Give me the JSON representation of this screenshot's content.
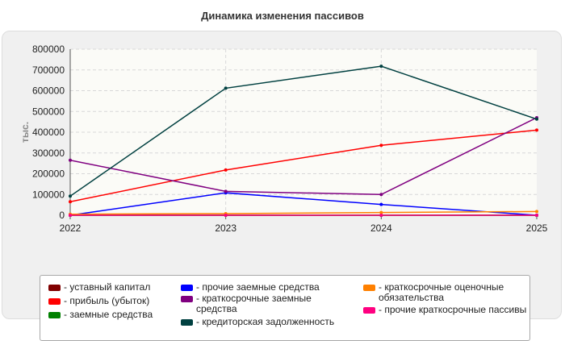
{
  "chart_data": {
    "type": "line",
    "title": "Динамика изменения пассивов",
    "ylabel": "тыс.",
    "xlabel": "",
    "x": [
      "2022",
      "2023",
      "2024",
      "2025"
    ],
    "ylim": [
      0,
      800000
    ],
    "yticks": [
      "0",
      "100000",
      "200000",
      "300000",
      "400000",
      "500000",
      "600000",
      "700000",
      "800000"
    ],
    "grid": true,
    "legend_position": "bottom",
    "series": [
      {
        "name": "уставный капитал",
        "color": "#800000",
        "values": [
          10,
          10,
          10,
          10
        ]
      },
      {
        "name": "прибыль (убыток)",
        "color": "#ff0000",
        "values": [
          65000,
          218000,
          337000,
          410000
        ]
      },
      {
        "name": "заемные средства",
        "color": "#008000",
        "values": [
          0,
          0,
          0,
          0
        ]
      },
      {
        "name": "прочие заемные средства",
        "color": "#0000ff",
        "values": [
          0,
          108000,
          52000,
          0
        ]
      },
      {
        "name": "краткосрочные заемные средства",
        "color": "#800080",
        "values": [
          265000,
          115000,
          100000,
          470000
        ]
      },
      {
        "name": "кредиторская задолженность",
        "color": "#004040",
        "values": [
          92000,
          612000,
          718000,
          463000
        ]
      },
      {
        "name": "краткосрочные оценочные обязательства",
        "color": "#ff8000",
        "values": [
          5000,
          8000,
          13000,
          18000
        ]
      },
      {
        "name": "прочие краткосрочные пассивы",
        "color": "#ff0080",
        "values": [
          0,
          0,
          0,
          0
        ]
      }
    ]
  }
}
